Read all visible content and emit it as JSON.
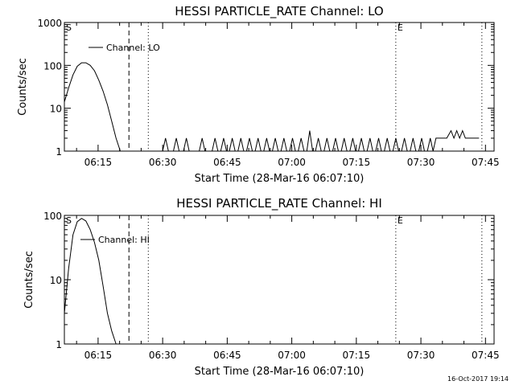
{
  "footer": {
    "timestamp": "16-Oct-2017 19:14"
  },
  "colors": {
    "background": "#ffffff",
    "ink": "#000000"
  },
  "chart_data": [
    {
      "type": "line",
      "title": "HESSI PARTICLE_RATE Channel: LO",
      "xlabel": "Start Time (28-Mar-16 06:07:10)",
      "ylabel": "Counts/sec",
      "y_scale": "log",
      "ylim": [
        1,
        1000
      ],
      "xlim": [
        "06:07:10",
        "07:47:00"
      ],
      "x_ticks": [
        "06:15",
        "06:30",
        "06:45",
        "07:00",
        "07:15",
        "07:30",
        "07:45"
      ],
      "y_ticks": [
        "1",
        "10",
        "100",
        "1000"
      ],
      "legend": {
        "entries": [
          "Channel: LO"
        ],
        "position": "top-left"
      },
      "markers": [
        {
          "time": "06:07:10",
          "label": "S",
          "style": "dotted"
        },
        {
          "time": "06:22:10",
          "label": "",
          "style": "dashed"
        },
        {
          "time": "06:26:40",
          "label": "",
          "style": "dotted"
        },
        {
          "time": "07:24:10",
          "label": "E",
          "style": "dotted"
        },
        {
          "time": "07:44:10",
          "label": "",
          "style": "dotted"
        }
      ],
      "series": [
        {
          "name": "Channel: LO",
          "points": [
            [
              "06:07:10",
              14
            ],
            [
              "06:08:10",
              30
            ],
            [
              "06:09:10",
              60
            ],
            [
              "06:10:10",
              95
            ],
            [
              "06:11:10",
              115
            ],
            [
              "06:12:10",
              115
            ],
            [
              "06:13:10",
              100
            ],
            [
              "06:14:10",
              75
            ],
            [
              "06:15:10",
              45
            ],
            [
              "06:16:10",
              25
            ],
            [
              "06:17:10",
              12
            ],
            [
              "06:18:10",
              5
            ],
            [
              "06:19:10",
              2
            ],
            [
              "06:20:10",
              1
            ],
            [
              "06:24:00",
              1
            ],
            [
              "06:26:00",
              1
            ],
            [
              "06:30:00",
              1
            ],
            [
              "06:30:40",
              2
            ],
            [
              "06:31:20",
              1
            ],
            [
              "06:32:30",
              1
            ],
            [
              "06:33:10",
              2
            ],
            [
              "06:33:50",
              1
            ],
            [
              "06:34:50",
              1
            ],
            [
              "06:35:30",
              2
            ],
            [
              "06:36:10",
              1
            ],
            [
              "06:38:30",
              1
            ],
            [
              "06:39:10",
              2
            ],
            [
              "06:39:50",
              1
            ],
            [
              "06:41:30",
              1
            ],
            [
              "06:42:10",
              2
            ],
            [
              "06:42:50",
              1
            ],
            [
              "06:43:30",
              1
            ],
            [
              "06:44:10",
              2
            ],
            [
              "06:44:50",
              1
            ],
            [
              "06:45:30",
              1
            ],
            [
              "06:46:10",
              2
            ],
            [
              "06:46:50",
              1
            ],
            [
              "06:47:30",
              1
            ],
            [
              "06:48:10",
              2
            ],
            [
              "06:48:50",
              1
            ],
            [
              "06:49:30",
              1
            ],
            [
              "06:50:10",
              2
            ],
            [
              "06:50:50",
              1
            ],
            [
              "06:51:30",
              1
            ],
            [
              "06:52:10",
              2
            ],
            [
              "06:52:50",
              1
            ],
            [
              "06:53:30",
              1
            ],
            [
              "06:54:10",
              2
            ],
            [
              "06:54:50",
              1
            ],
            [
              "06:55:30",
              1
            ],
            [
              "06:56:10",
              2
            ],
            [
              "06:56:50",
              1
            ],
            [
              "06:57:30",
              1
            ],
            [
              "06:58:10",
              2
            ],
            [
              "06:58:50",
              1
            ],
            [
              "06:59:30",
              1
            ],
            [
              "07:00:10",
              2
            ],
            [
              "07:00:50",
              1
            ],
            [
              "07:01:30",
              1
            ],
            [
              "07:02:10",
              2
            ],
            [
              "07:02:50",
              1
            ],
            [
              "07:03:30",
              1
            ],
            [
              "07:04:10",
              3
            ],
            [
              "07:04:50",
              1
            ],
            [
              "07:05:30",
              1
            ],
            [
              "07:06:10",
              2
            ],
            [
              "07:06:50",
              1
            ],
            [
              "07:07:30",
              1
            ],
            [
              "07:08:10",
              2
            ],
            [
              "07:08:50",
              1
            ],
            [
              "07:09:30",
              1
            ],
            [
              "07:10:10",
              2
            ],
            [
              "07:10:50",
              1
            ],
            [
              "07:11:30",
              1
            ],
            [
              "07:12:10",
              2
            ],
            [
              "07:12:50",
              1
            ],
            [
              "07:13:30",
              1
            ],
            [
              "07:14:10",
              2
            ],
            [
              "07:14:50",
              1
            ],
            [
              "07:15:30",
              1
            ],
            [
              "07:16:10",
              2
            ],
            [
              "07:16:50",
              1
            ],
            [
              "07:17:30",
              1
            ],
            [
              "07:18:10",
              2
            ],
            [
              "07:18:50",
              1
            ],
            [
              "07:19:30",
              1
            ],
            [
              "07:20:10",
              2
            ],
            [
              "07:20:50",
              1
            ],
            [
              "07:21:30",
              1
            ],
            [
              "07:22:10",
              2
            ],
            [
              "07:22:50",
              1
            ],
            [
              "07:23:30",
              1
            ],
            [
              "07:24:10",
              2
            ],
            [
              "07:24:50",
              1
            ],
            [
              "07:25:30",
              1
            ],
            [
              "07:26:10",
              2
            ],
            [
              "07:26:50",
              1
            ],
            [
              "07:27:30",
              1
            ],
            [
              "07:28:10",
              2
            ],
            [
              "07:28:50",
              1
            ],
            [
              "07:29:30",
              1
            ],
            [
              "07:30:10",
              2
            ],
            [
              "07:30:50",
              1
            ],
            [
              "07:31:30",
              1
            ],
            [
              "07:32:10",
              2
            ],
            [
              "07:32:50",
              1
            ],
            [
              "07:33:30",
              2
            ],
            [
              "07:36:00",
              2
            ],
            [
              "07:37:00",
              3
            ],
            [
              "07:37:40",
              2
            ],
            [
              "07:38:20",
              3
            ],
            [
              "07:39:00",
              2
            ],
            [
              "07:39:40",
              3
            ],
            [
              "07:40:20",
              2
            ],
            [
              "07:43:30",
              2
            ]
          ]
        }
      ]
    },
    {
      "type": "line",
      "title": "HESSI PARTICLE_RATE Channel: HI",
      "xlabel": "Start Time (28-Mar-16 06:07:10)",
      "ylabel": "Counts/sec",
      "y_scale": "log",
      "ylim": [
        1,
        100
      ],
      "xlim": [
        "06:07:10",
        "07:47:00"
      ],
      "x_ticks": [
        "06:15",
        "06:30",
        "06:45",
        "07:00",
        "07:15",
        "07:30",
        "07:45"
      ],
      "y_ticks": [
        "1",
        "10",
        "100"
      ],
      "legend": {
        "entries": [
          "Channel: HI"
        ],
        "position": "top-left"
      },
      "markers": [
        {
          "time": "06:07:10",
          "label": "S",
          "style": "dotted"
        },
        {
          "time": "06:22:10",
          "label": "",
          "style": "dashed"
        },
        {
          "time": "06:26:40",
          "label": "",
          "style": "dotted"
        },
        {
          "time": "07:24:10",
          "label": "E",
          "style": "dotted"
        },
        {
          "time": "07:44:10",
          "label": "",
          "style": "dotted"
        }
      ],
      "series": [
        {
          "name": "Channel: HI",
          "points": [
            [
              "06:07:10",
              3
            ],
            [
              "06:08:10",
              15
            ],
            [
              "06:09:10",
              50
            ],
            [
              "06:10:10",
              80
            ],
            [
              "06:11:10",
              90
            ],
            [
              "06:12:10",
              82
            ],
            [
              "06:13:10",
              60
            ],
            [
              "06:14:10",
              38
            ],
            [
              "06:15:10",
              20
            ],
            [
              "06:16:10",
              8
            ],
            [
              "06:17:10",
              3
            ],
            [
              "06:18:10",
              1.6
            ],
            [
              "06:19:10",
              1
            ]
          ]
        }
      ]
    }
  ]
}
